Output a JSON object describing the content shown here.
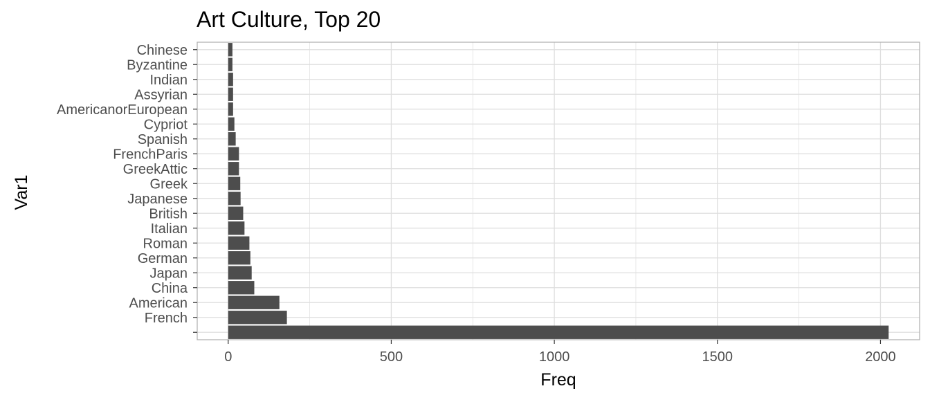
{
  "chart_data": {
    "type": "bar",
    "orientation": "horizontal",
    "title": "Art Culture, Top 20",
    "xlabel": "Freq",
    "ylabel": "Var1",
    "categories": [
      "",
      "French",
      "American",
      "China",
      "Japan",
      "German",
      "Roman",
      "Italian",
      "British",
      "Japanese",
      "Greek",
      "GreekAttic",
      "FrenchParis",
      "Spanish",
      "Cypriot",
      "AmericanorEuropean",
      "Assyrian",
      "Indian",
      "Byzantine",
      "Chinese"
    ],
    "values": [
      2025,
      180,
      157,
      80,
      72,
      68,
      65,
      50,
      46,
      38,
      37,
      33,
      33,
      23,
      19,
      15,
      15,
      15,
      13,
      13
    ],
    "xlim": [
      -95,
      2120
    ],
    "xticks": [
      0,
      500,
      1000,
      1500,
      2000
    ],
    "grid": true,
    "legend": "none",
    "colors": {
      "bar": "#4d4d4d",
      "grid": "#dedede",
      "panel_border": "#b3b3b3"
    }
  }
}
